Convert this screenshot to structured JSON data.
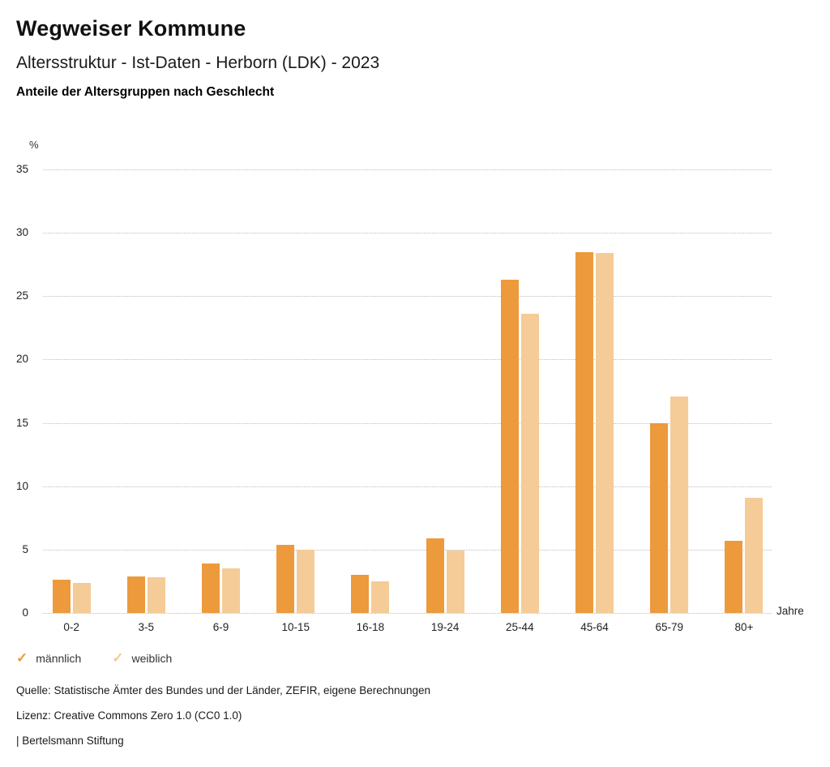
{
  "header": {
    "title": "Wegweiser Kommune",
    "subtitle": "Altersstruktur - Ist-Daten - Herborn (LDK) - 2023",
    "chart_heading": "Anteile der Altersgruppen nach Geschlecht"
  },
  "chart_data": {
    "type": "bar",
    "title": "Anteile der Altersgruppen nach Geschlecht",
    "categories": [
      "0-2",
      "3-5",
      "6-9",
      "10-15",
      "16-18",
      "19-24",
      "25-44",
      "45-64",
      "65-79",
      "80+"
    ],
    "series": [
      {
        "name": "männlich",
        "color": "#ED9A3C",
        "values": [
          2.6,
          2.9,
          3.9,
          5.4,
          3.0,
          5.9,
          26.3,
          28.5,
          15.0,
          5.7
        ]
      },
      {
        "name": "weiblich",
        "color": "#F5CB97",
        "values": [
          2.4,
          2.8,
          3.5,
          5.0,
          2.5,
          4.9,
          23.6,
          28.4,
          17.1,
          9.1
        ]
      }
    ],
    "xlabel": "Jahre",
    "ylabel": "%",
    "ylim": [
      0,
      35
    ],
    "yticks": [
      0,
      5,
      10,
      15,
      20,
      25,
      30,
      35
    ],
    "grid": true,
    "gridline_color": "#bcbcbc",
    "legend_position": "bottom"
  },
  "legend": {
    "check_icon": "✓",
    "items": [
      {
        "label": "männlich",
        "color": "#ED9A3C"
      },
      {
        "label": "weiblich",
        "color": "#F5CB97"
      }
    ]
  },
  "footer": {
    "source": "Quelle: Statistische Ämter des Bundes und der Länder, ZEFIR, eigene Berechnungen",
    "license": "Lizenz: Creative Commons Zero 1.0 (CC0 1.0)",
    "attribution": "| Bertelsmann Stiftung"
  }
}
